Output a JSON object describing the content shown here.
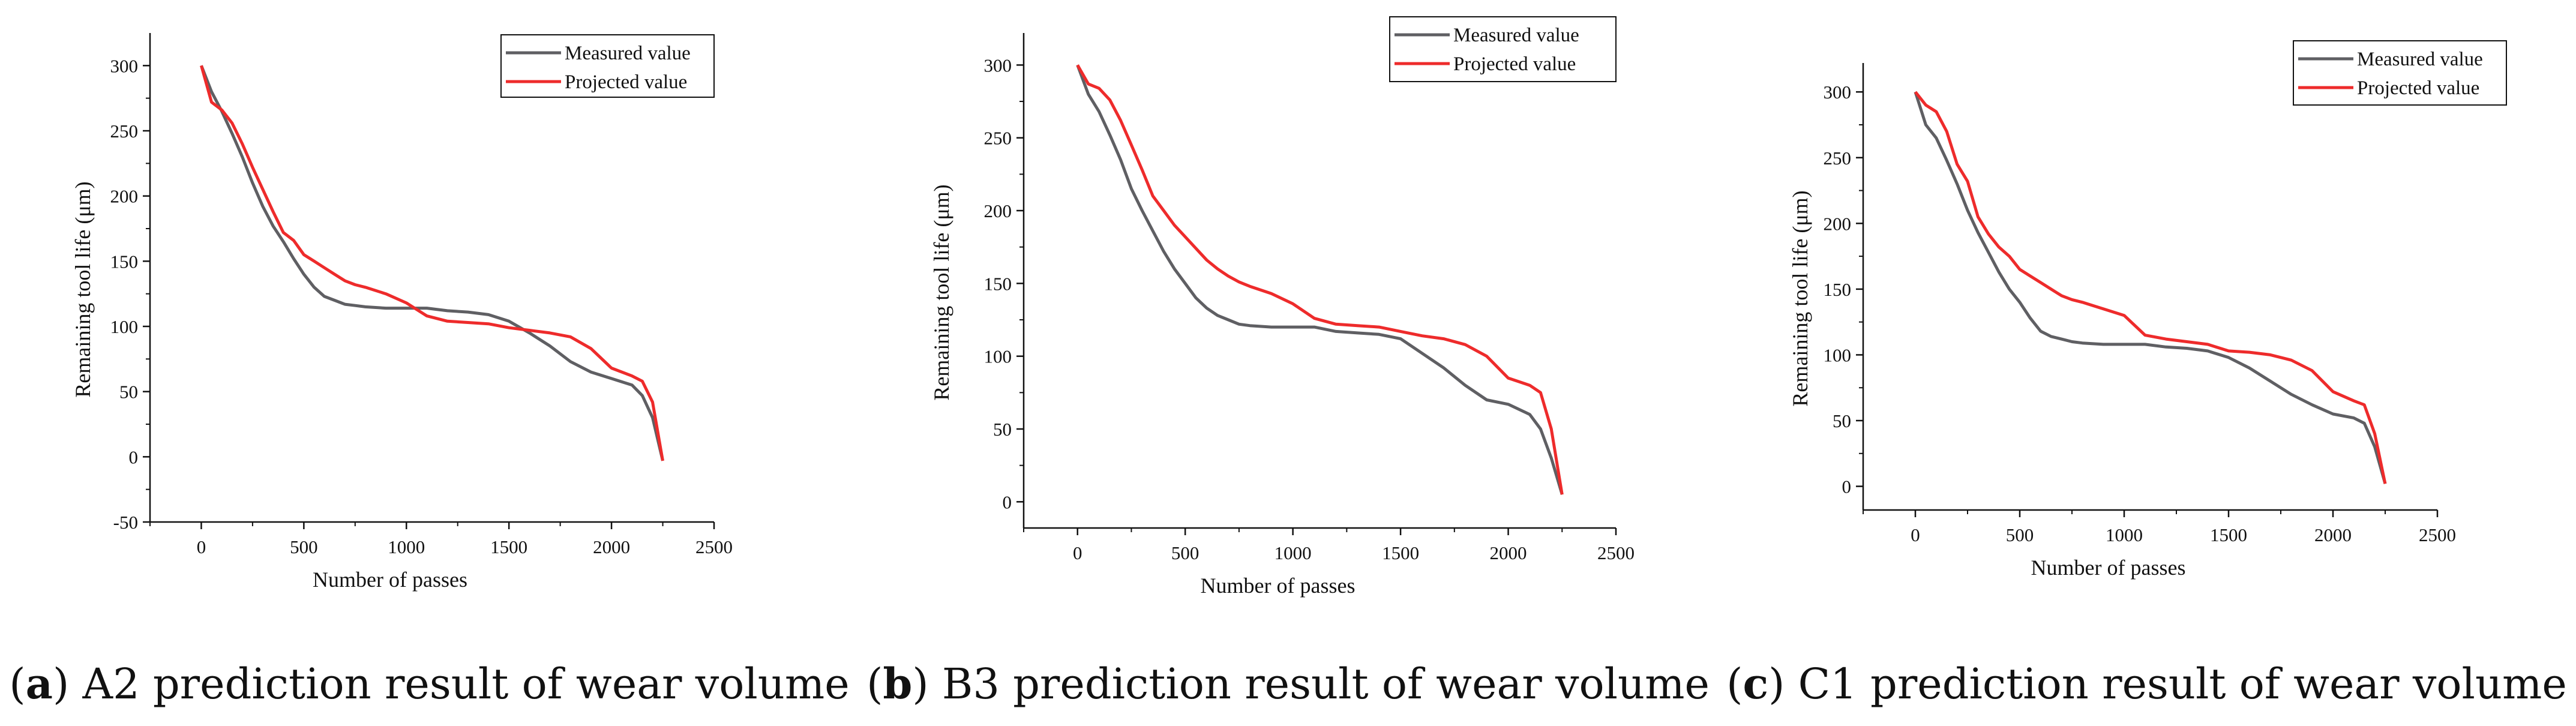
{
  "chart_data": [
    {
      "type": "line",
      "id": "a",
      "caption": {
        "paren_open": "(",
        "label": "a",
        "text": ") A2 prediction result of wear volume"
      },
      "xlabel": "Number of passes",
      "ylabel": "Remaining tool life (μm)",
      "xlim": [
        -250,
        2500
      ],
      "ylim": [
        -50,
        325
      ],
      "xticks": [
        0,
        500,
        1000,
        1500,
        2000,
        2500
      ],
      "yticks": [
        -50,
        0,
        50,
        100,
        150,
        200,
        250,
        300
      ],
      "legend_position": "top-right",
      "series": [
        {
          "name": "Measured value",
          "color": "#5f5f63",
          "x": [
            0,
            50,
            100,
            150,
            200,
            250,
            300,
            350,
            400,
            450,
            500,
            550,
            600,
            650,
            700,
            750,
            800,
            900,
            1000,
            1100,
            1200,
            1300,
            1400,
            1500,
            1600,
            1700,
            1800,
            1900,
            2000,
            2100,
            2150,
            2200,
            2250
          ],
          "y": [
            300,
            280,
            265,
            248,
            230,
            210,
            192,
            177,
            165,
            152,
            140,
            130,
            123,
            120,
            117,
            116,
            115,
            114,
            114,
            114,
            112,
            111,
            109,
            104,
            95,
            85,
            73,
            65,
            60,
            55,
            47,
            30,
            -3
          ]
        },
        {
          "name": "Projected value",
          "color": "#ee2b2b",
          "x": [
            0,
            50,
            100,
            150,
            200,
            250,
            300,
            350,
            400,
            450,
            500,
            550,
            600,
            650,
            700,
            750,
            800,
            900,
            1000,
            1100,
            1200,
            1300,
            1400,
            1500,
            1600,
            1700,
            1800,
            1900,
            2000,
            2100,
            2150,
            2200,
            2250
          ],
          "y": [
            300,
            272,
            266,
            256,
            240,
            222,
            205,
            188,
            172,
            166,
            155,
            150,
            145,
            140,
            135,
            132,
            130,
            125,
            118,
            108,
            104,
            103,
            102,
            99,
            97,
            95,
            92,
            83,
            68,
            62,
            58,
            42,
            -3
          ]
        }
      ]
    },
    {
      "type": "line",
      "id": "b",
      "caption": {
        "paren_open": "(",
        "label": "b",
        "text": ") B3 prediction result of wear volume"
      },
      "xlabel": "Number of passes",
      "ylabel": "Remaining tool life (μm)",
      "xlim": [
        -250,
        2500
      ],
      "ylim": [
        -18,
        322
      ],
      "xticks": [
        0,
        500,
        1000,
        1500,
        2000,
        2500
      ],
      "yticks": [
        0,
        50,
        100,
        150,
        200,
        250,
        300
      ],
      "legend_position": "top-right",
      "series": [
        {
          "name": "Measured value",
          "color": "#5f5f63",
          "x": [
            0,
            50,
            100,
            150,
            200,
            250,
            300,
            350,
            400,
            450,
            500,
            550,
            600,
            650,
            700,
            750,
            800,
            900,
            1000,
            1100,
            1200,
            1300,
            1400,
            1500,
            1600,
            1700,
            1800,
            1900,
            2000,
            2100,
            2150,
            2200,
            2250
          ],
          "y": [
            300,
            280,
            268,
            252,
            235,
            215,
            200,
            186,
            172,
            160,
            150,
            140,
            133,
            128,
            125,
            122,
            121,
            120,
            120,
            120,
            117,
            116,
            115,
            112,
            102,
            92,
            80,
            70,
            67,
            60,
            50,
            30,
            5
          ]
        },
        {
          "name": "Projected value",
          "color": "#ee2b2b",
          "x": [
            0,
            50,
            100,
            150,
            200,
            250,
            300,
            350,
            400,
            450,
            500,
            550,
            600,
            650,
            700,
            750,
            800,
            900,
            1000,
            1100,
            1200,
            1300,
            1400,
            1500,
            1600,
            1700,
            1800,
            1900,
            2000,
            2100,
            2150,
            2200,
            2250
          ],
          "y": [
            300,
            287,
            284,
            276,
            262,
            245,
            228,
            210,
            200,
            190,
            182,
            174,
            166,
            160,
            155,
            151,
            148,
            143,
            136,
            126,
            122,
            121,
            120,
            117,
            114,
            112,
            108,
            100,
            85,
            80,
            75,
            50,
            5
          ]
        }
      ]
    },
    {
      "type": "line",
      "id": "c",
      "caption": {
        "paren_open": "(",
        "label": "c",
        "text": ") C1 prediction result of wear volume"
      },
      "xlabel": "Number of passes",
      "ylabel": "Remaining tool life (μm)",
      "xlim": [
        -250,
        2500
      ],
      "ylim": [
        -18,
        322
      ],
      "xticks": [
        0,
        500,
        1000,
        1500,
        2000,
        2500
      ],
      "yticks": [
        0,
        50,
        100,
        150,
        200,
        250,
        300
      ],
      "legend_position": "top-right",
      "series": [
        {
          "name": "Measured value",
          "color": "#5f5f63",
          "x": [
            0,
            50,
            100,
            150,
            200,
            250,
            300,
            350,
            400,
            450,
            500,
            550,
            600,
            650,
            700,
            750,
            800,
            900,
            1000,
            1100,
            1200,
            1300,
            1400,
            1500,
            1600,
            1700,
            1800,
            1900,
            2000,
            2100,
            2150,
            2200,
            2250
          ],
          "y": [
            300,
            275,
            265,
            248,
            230,
            210,
            193,
            178,
            163,
            150,
            140,
            128,
            118,
            114,
            112,
            110,
            109,
            108,
            108,
            108,
            106,
            105,
            103,
            98,
            90,
            80,
            70,
            62,
            55,
            52,
            48,
            30,
            2
          ]
        },
        {
          "name": "Projected value",
          "color": "#ee2b2b",
          "x": [
            0,
            50,
            100,
            150,
            200,
            250,
            300,
            350,
            400,
            450,
            500,
            550,
            600,
            650,
            700,
            750,
            800,
            900,
            1000,
            1100,
            1200,
            1300,
            1400,
            1500,
            1600,
            1700,
            1800,
            1900,
            2000,
            2100,
            2150,
            2200,
            2250
          ],
          "y": [
            300,
            290,
            285,
            270,
            245,
            232,
            205,
            192,
            182,
            175,
            165,
            160,
            155,
            150,
            145,
            142,
            140,
            135,
            130,
            115,
            112,
            110,
            108,
            103,
            102,
            100,
            96,
            88,
            72,
            65,
            62,
            40,
            2
          ]
        }
      ]
    }
  ]
}
